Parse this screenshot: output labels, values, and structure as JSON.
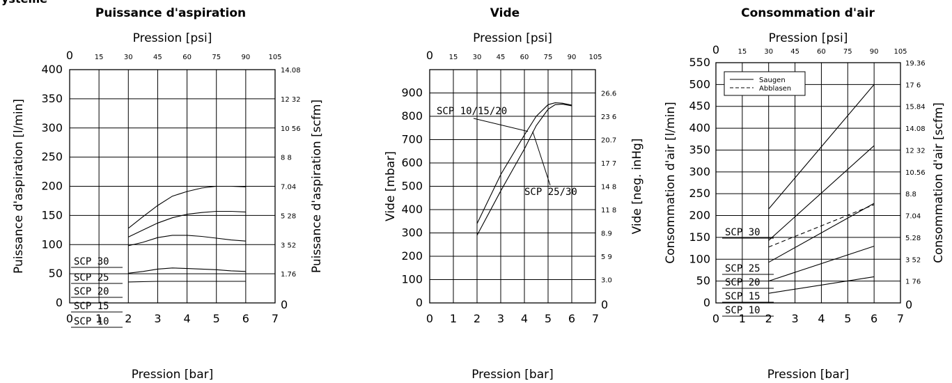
{
  "header_fragment": "ystème",
  "colors": {
    "ink": "#000000",
    "background": "#ffffff"
  },
  "chart_data": [
    {
      "id": "aspiration",
      "type": "line",
      "title": "Puissance d'aspiration",
      "xlabel": "Pression [bar]",
      "x2label": "Pression [psi]",
      "ylabel": "Puissance d'aspiration [l/min]",
      "y2label": "Puissance d'aspiration [scfm]",
      "xlim": [
        0,
        7
      ],
      "ylim": [
        0,
        400
      ],
      "x_ticks": [
        "0",
        "1",
        "2",
        "3",
        "4",
        "5",
        "6",
        "7"
      ],
      "y_ticks": [
        "0",
        "50",
        "100",
        "150",
        "200",
        "250",
        "300",
        "350",
        "400"
      ],
      "x2_ticks": [
        "0",
        "15",
        "30",
        "45",
        "60",
        "75",
        "90",
        "105"
      ],
      "y2_ticks": [
        "0",
        "1.76",
        "3 52",
        "5 28",
        "7.04",
        "8 8",
        "10 56",
        "12 32",
        "14.08"
      ],
      "grid": true,
      "series": [
        {
          "name": "SCP 30",
          "x": [
            2,
            2.5,
            3,
            3.5,
            4,
            4.5,
            5,
            5.5,
            6
          ],
          "y": [
            128,
            148,
            167,
            183,
            191,
            197,
            200,
            200,
            199
          ]
        },
        {
          "name": "SCP 25",
          "x": [
            2,
            2.5,
            3,
            3.5,
            4,
            4.5,
            5,
            5.5,
            6
          ],
          "y": [
            113,
            125,
            137,
            146,
            152,
            155,
            157,
            157,
            156
          ]
        },
        {
          "name": "SCP 20",
          "x": [
            2,
            2.5,
            3,
            3.5,
            4,
            4.5,
            5,
            5.5,
            6
          ],
          "y": [
            98,
            104,
            112,
            116,
            116,
            114,
            111,
            108,
            106
          ]
        },
        {
          "name": "SCP 15",
          "x": [
            2,
            2.5,
            3,
            3.5,
            4,
            4.5,
            5,
            5.5,
            6
          ],
          "y": [
            51,
            54,
            58,
            60,
            59,
            58,
            57,
            55,
            54
          ]
        },
        {
          "name": "SCP 10",
          "x": [
            2,
            3,
            4,
            5,
            6
          ],
          "y": [
            36,
            37,
            37,
            37,
            37
          ]
        }
      ]
    },
    {
      "id": "vide",
      "type": "line",
      "title": "Vide",
      "xlabel": "Pression [bar]",
      "x2label": "Pression [psi]",
      "ylabel": "Vide [mbar]",
      "y2label": "Vide [neg. inHg]",
      "xlim": [
        0,
        7
      ],
      "ylim": [
        0,
        1000
      ],
      "x_ticks": [
        "0",
        "1",
        "2",
        "3",
        "4",
        "5",
        "6",
        "7"
      ],
      "y_ticks": [
        "0",
        "100",
        "200",
        "300",
        "400",
        "500",
        "600",
        "700",
        "800",
        "900"
      ],
      "x2_ticks": [
        "0",
        "15",
        "30",
        "45",
        "60",
        "75",
        "90",
        "105"
      ],
      "y2_ticks": [
        "0",
        "3.0",
        "5 9",
        "8.9",
        "11 8",
        "14 8",
        "17 7",
        "20.7",
        "23 6",
        "26.6"
      ],
      "grid": true,
      "series": [
        {
          "name": "SCP 10/15/20",
          "x": [
            2,
            3,
            4,
            4.5,
            5,
            5.3,
            5.6,
            6
          ],
          "y": [
            340,
            550,
            720,
            800,
            850,
            858,
            856,
            848
          ]
        },
        {
          "name": "SCP 25/30",
          "x": [
            2,
            3,
            4,
            4.5,
            5,
            5.3,
            5.6,
            6
          ],
          "y": [
            290,
            480,
            660,
            760,
            830,
            850,
            852,
            845
          ]
        }
      ],
      "annotations": [
        "SCP 10/15/20",
        "SCP 25/30"
      ]
    },
    {
      "id": "consommation",
      "type": "line",
      "title": "Consommation d'air",
      "xlabel": "Pression [bar]",
      "x2label": "Pression [psi]",
      "ylabel": "Consommation d'air [l/min]",
      "y2label": "Consommation d'air [scfm]",
      "xlim": [
        0,
        7
      ],
      "ylim": [
        0,
        550
      ],
      "x_ticks": [
        "0",
        "1",
        "2",
        "3",
        "4",
        "5",
        "6",
        "7"
      ],
      "y_ticks": [
        "0",
        "50",
        "100",
        "150",
        "200",
        "250",
        "300",
        "350",
        "400",
        "450",
        "500",
        "550"
      ],
      "x2_ticks": [
        "0",
        "15",
        "30",
        "45",
        "60",
        "75",
        "90",
        "105"
      ],
      "y2_ticks": [
        "0",
        "1 76",
        "3 52",
        "5.28",
        "7.04",
        "8.8",
        "10.56",
        "12 32",
        "14.08",
        "15.84",
        "17 6",
        "19.36"
      ],
      "grid": true,
      "legend": {
        "position": "top-left",
        "entries": [
          "Saugen",
          "Abblasen"
        ]
      },
      "series": [
        {
          "name": "SCP 30",
          "style": "Saugen",
          "x": [
            2,
            6
          ],
          "y": [
            215,
            500
          ]
        },
        {
          "name": "SCP 25",
          "style": "Saugen",
          "x": [
            2,
            6
          ],
          "y": [
            143,
            360
          ]
        },
        {
          "name": "SCP 25",
          "style": "Abblasen",
          "x": [
            2,
            6
          ],
          "y": [
            128,
            225
          ]
        },
        {
          "name": "SCP 20",
          "style": "Saugen",
          "x": [
            2,
            6
          ],
          "y": [
            93,
            228
          ]
        },
        {
          "name": "SCP 15",
          "style": "Saugen",
          "x": [
            2,
            6
          ],
          "y": [
            50,
            130
          ]
        },
        {
          "name": "SCP 10",
          "style": "Saugen",
          "x": [
            2,
            6
          ],
          "y": [
            22,
            60
          ]
        }
      ]
    }
  ]
}
